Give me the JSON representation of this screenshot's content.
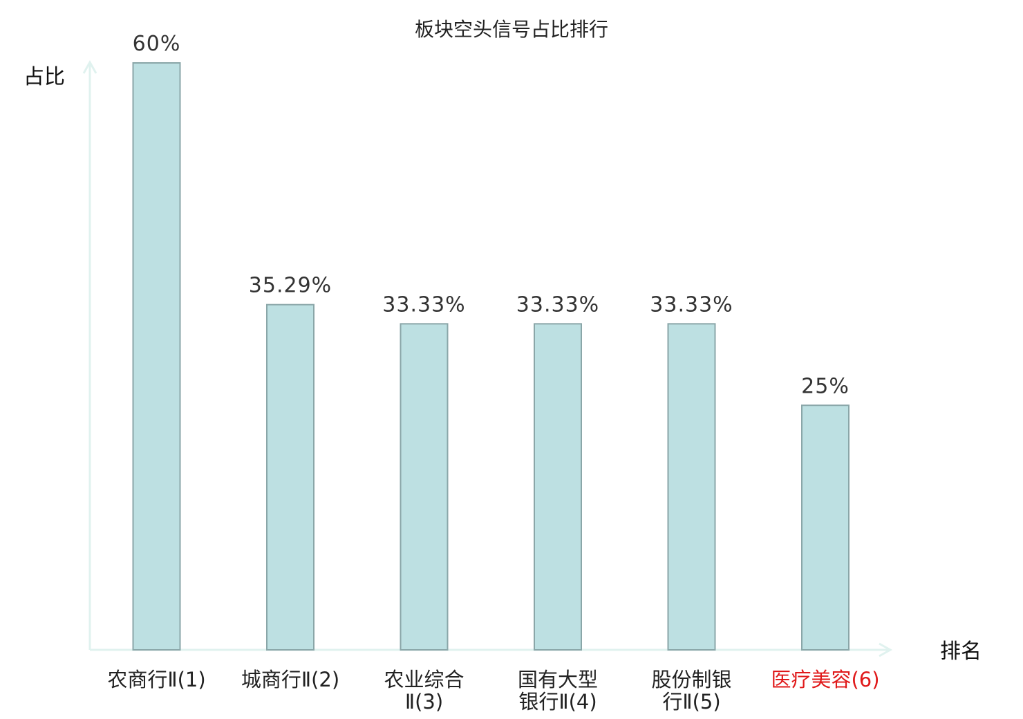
{
  "chart_data": {
    "type": "bar",
    "title": "板块空头信号占比排行",
    "xlabel": "排名",
    "ylabel": "占比",
    "ylim": [
      0,
      60
    ],
    "grid": false,
    "categories": [
      {
        "lines": [
          "农商行Ⅱ(1)"
        ],
        "highlight": false
      },
      {
        "lines": [
          "城商行Ⅱ(2)"
        ],
        "highlight": false
      },
      {
        "lines": [
          "农业综合",
          "Ⅱ(3)"
        ],
        "highlight": false
      },
      {
        "lines": [
          "国有大型",
          "银行Ⅱ(4)"
        ],
        "highlight": false
      },
      {
        "lines": [
          "股份制银",
          "行Ⅱ(5)"
        ],
        "highlight": false
      },
      {
        "lines": [
          "医疗美容(6)"
        ],
        "highlight": true
      }
    ],
    "values": [
      60,
      35.29,
      33.33,
      33.33,
      33.33,
      25
    ],
    "value_labels": [
      "60%",
      "35.29%",
      "33.33%",
      "33.33%",
      "33.33%",
      "25%"
    ],
    "colors": {
      "bar_fill": "#bde0e2",
      "bar_stroke": "#8aa6a8",
      "axis": "#e0f2ef",
      "category_text": "#222222",
      "highlight_text": "#e0191a"
    }
  }
}
